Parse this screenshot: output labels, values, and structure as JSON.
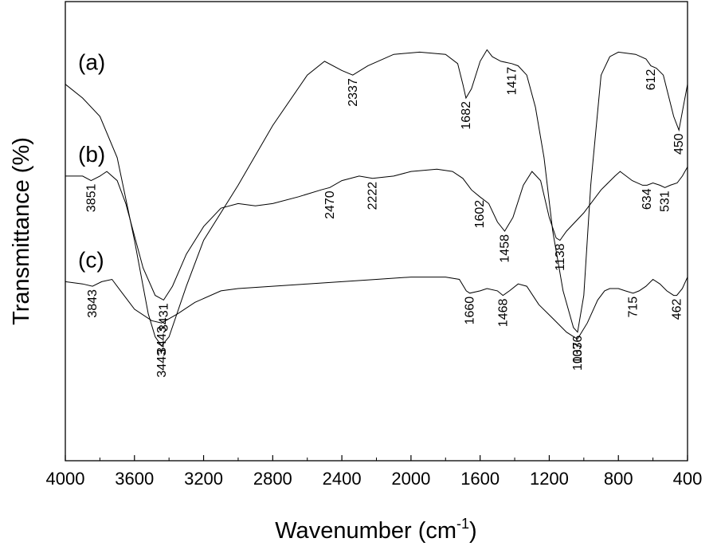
{
  "chart_data": {
    "type": "line",
    "title": "",
    "xlabel": "Wavenumber (cm",
    "xlabel_sup": "-1",
    "xlabel_close": ")",
    "ylabel": "Transmittance (%)",
    "xlim": [
      4000,
      400
    ],
    "x_reversed": true,
    "grid": false,
    "x_ticks": [
      4000,
      3600,
      3200,
      2800,
      2400,
      2000,
      1600,
      1200,
      800,
      400
    ],
    "series": [
      {
        "name": "(a)",
        "points": [
          [
            4000,
            82
          ],
          [
            3900,
            79
          ],
          [
            3800,
            75
          ],
          [
            3700,
            66
          ],
          [
            3600,
            48
          ],
          [
            3520,
            32
          ],
          [
            3480,
            27
          ],
          [
            3443,
            25
          ],
          [
            3400,
            27
          ],
          [
            3300,
            38
          ],
          [
            3200,
            48
          ],
          [
            3000,
            60
          ],
          [
            2800,
            73
          ],
          [
            2600,
            84
          ],
          [
            2500,
            87
          ],
          [
            2400,
            85
          ],
          [
            2337,
            84
          ],
          [
            2250,
            86
          ],
          [
            2100,
            88.5
          ],
          [
            1950,
            89
          ],
          [
            1800,
            88.5
          ],
          [
            1730,
            86.5
          ],
          [
            1700,
            82
          ],
          [
            1682,
            79
          ],
          [
            1650,
            81
          ],
          [
            1600,
            87
          ],
          [
            1560,
            89.5
          ],
          [
            1530,
            88
          ],
          [
            1480,
            87
          ],
          [
            1417,
            86.5
          ],
          [
            1380,
            86
          ],
          [
            1330,
            84
          ],
          [
            1280,
            77
          ],
          [
            1230,
            66
          ],
          [
            1180,
            50
          ],
          [
            1120,
            37
          ],
          [
            1060,
            29
          ],
          [
            1036,
            28
          ],
          [
            1000,
            36
          ],
          [
            960,
            60
          ],
          [
            900,
            84
          ],
          [
            850,
            88
          ],
          [
            800,
            89
          ],
          [
            700,
            88.5
          ],
          [
            640,
            87.5
          ],
          [
            612,
            86
          ],
          [
            580,
            85.5
          ],
          [
            540,
            84
          ],
          [
            480,
            75
          ],
          [
            450,
            72
          ],
          [
            430,
            76
          ],
          [
            400,
            82
          ]
        ],
        "peaks": [
          3443,
          2337,
          1682,
          1417,
          1036,
          612,
          450
        ]
      },
      {
        "name": "(b)",
        "points": [
          [
            4000,
            62
          ],
          [
            3900,
            62
          ],
          [
            3851,
            61
          ],
          [
            3800,
            62
          ],
          [
            3760,
            63
          ],
          [
            3700,
            61
          ],
          [
            3650,
            56
          ],
          [
            3550,
            42
          ],
          [
            3480,
            36
          ],
          [
            3431,
            35
          ],
          [
            3380,
            38
          ],
          [
            3300,
            45
          ],
          [
            3200,
            51
          ],
          [
            3100,
            55
          ],
          [
            3000,
            56
          ],
          [
            2900,
            55.5
          ],
          [
            2800,
            56
          ],
          [
            2650,
            57.5
          ],
          [
            2520,
            59
          ],
          [
            2470,
            59.5
          ],
          [
            2400,
            61
          ],
          [
            2300,
            62
          ],
          [
            2222,
            61.5
          ],
          [
            2100,
            62
          ],
          [
            2000,
            63
          ],
          [
            1850,
            63.5
          ],
          [
            1760,
            63
          ],
          [
            1700,
            61.5
          ],
          [
            1650,
            59
          ],
          [
            1602,
            57.5
          ],
          [
            1550,
            56
          ],
          [
            1500,
            52
          ],
          [
            1458,
            50
          ],
          [
            1410,
            53
          ],
          [
            1350,
            60
          ],
          [
            1300,
            63
          ],
          [
            1250,
            61
          ],
          [
            1200,
            53
          ],
          [
            1160,
            48.5
          ],
          [
            1138,
            48
          ],
          [
            1100,
            50
          ],
          [
            1000,
            54
          ],
          [
            900,
            59
          ],
          [
            820,
            62
          ],
          [
            790,
            63
          ],
          [
            720,
            61
          ],
          [
            660,
            60
          ],
          [
            634,
            60
          ],
          [
            600,
            60.5
          ],
          [
            560,
            60
          ],
          [
            531,
            59.5
          ],
          [
            500,
            60
          ],
          [
            460,
            60.5
          ],
          [
            430,
            62
          ],
          [
            400,
            64
          ]
        ],
        "peaks": [
          3851,
          3431,
          2470,
          2222,
          1602,
          1458,
          1138,
          634,
          531
        ]
      },
      {
        "name": "(c)",
        "points": [
          [
            4000,
            39
          ],
          [
            3900,
            38.5
          ],
          [
            3843,
            38
          ],
          [
            3790,
            39
          ],
          [
            3730,
            39.5
          ],
          [
            3680,
            37
          ],
          [
            3600,
            33
          ],
          [
            3500,
            30.5
          ],
          [
            3443,
            30
          ],
          [
            3350,
            32
          ],
          [
            3250,
            34.5
          ],
          [
            3100,
            37
          ],
          [
            3000,
            37.5
          ],
          [
            2800,
            38
          ],
          [
            2600,
            38.5
          ],
          [
            2400,
            39
          ],
          [
            2200,
            39.5
          ],
          [
            2000,
            40
          ],
          [
            1800,
            40
          ],
          [
            1720,
            39.5
          ],
          [
            1680,
            37
          ],
          [
            1660,
            36.5
          ],
          [
            1600,
            37
          ],
          [
            1560,
            37.5
          ],
          [
            1500,
            37
          ],
          [
            1468,
            36
          ],
          [
            1430,
            37
          ],
          [
            1380,
            38.5
          ],
          [
            1330,
            38
          ],
          [
            1260,
            34
          ],
          [
            1180,
            31
          ],
          [
            1100,
            28
          ],
          [
            1037,
            26.5
          ],
          [
            980,
            30
          ],
          [
            920,
            35
          ],
          [
            880,
            37
          ],
          [
            850,
            37.5
          ],
          [
            800,
            37.5
          ],
          [
            760,
            37
          ],
          [
            715,
            36.5
          ],
          [
            680,
            37
          ],
          [
            640,
            38
          ],
          [
            600,
            39.5
          ],
          [
            560,
            38.5
          ],
          [
            520,
            37
          ],
          [
            480,
            36
          ],
          [
            462,
            36
          ],
          [
            430,
            37.5
          ],
          [
            400,
            40
          ]
        ],
        "peaks": [
          3843,
          3443,
          1660,
          1468,
          1037,
          715,
          462
        ]
      }
    ],
    "peak_labels": [
      {
        "text": "3443",
        "x": 3443,
        "y": 25,
        "dir": "below"
      },
      {
        "text": "2337",
        "x": 2337,
        "y": 84,
        "dir": "below"
      },
      {
        "text": "1682",
        "x": 1682,
        "y": 79,
        "dir": "below"
      },
      {
        "text": "1417",
        "x": 1417,
        "y": 86.5,
        "dir": "below"
      },
      {
        "text": "1036",
        "x": 1036,
        "y": 28,
        "dir": "below"
      },
      {
        "text": "612",
        "x": 612,
        "y": 86,
        "dir": "below"
      },
      {
        "text": "450",
        "x": 450,
        "y": 72,
        "dir": "below"
      },
      {
        "text": "3851",
        "x": 3851,
        "y": 61,
        "dir": "below"
      },
      {
        "text": "3431",
        "x": 3431,
        "y": 35,
        "dir": "below"
      },
      {
        "text": "2470",
        "x": 2470,
        "y": 59.5,
        "dir": "below"
      },
      {
        "text": "2222",
        "x": 2222,
        "y": 61.5,
        "dir": "below"
      },
      {
        "text": "1602",
        "x": 1602,
        "y": 57.5,
        "dir": "below"
      },
      {
        "text": "1458",
        "x": 1458,
        "y": 50,
        "dir": "below"
      },
      {
        "text": "1138",
        "x": 1138,
        "y": 48,
        "dir": "below"
      },
      {
        "text": "634",
        "x": 634,
        "y": 60,
        "dir": "below"
      },
      {
        "text": "531",
        "x": 531,
        "y": 59.5,
        "dir": "below"
      },
      {
        "text": "3843",
        "x": 3843,
        "y": 38,
        "dir": "below"
      },
      {
        "text": "3443",
        "x": 3443,
        "y": 30,
        "dir": "below"
      },
      {
        "text": "1660",
        "x": 1660,
        "y": 36.5,
        "dir": "below"
      },
      {
        "text": "1468",
        "x": 1468,
        "y": 36,
        "dir": "below"
      },
      {
        "text": "1037",
        "x": 1037,
        "y": 26.5,
        "dir": "below"
      },
      {
        "text": "715",
        "x": 715,
        "y": 36.5,
        "dir": "below"
      },
      {
        "text": "462",
        "x": 462,
        "y": 36,
        "dir": "below"
      }
    ],
    "ylim": [
      0,
      100
    ],
    "y_ticks_shown": false
  }
}
